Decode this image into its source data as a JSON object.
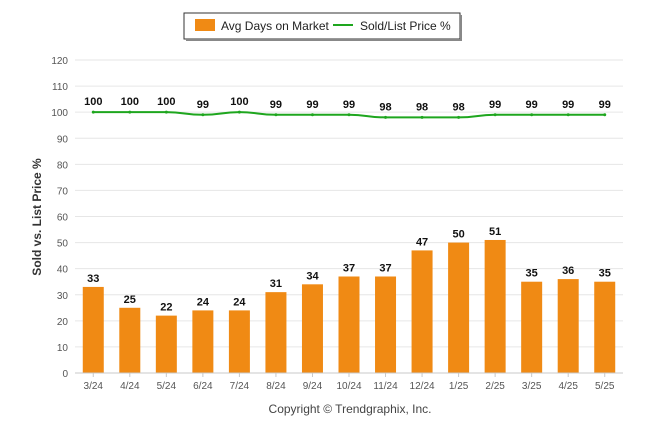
{
  "chart_data": {
    "type": "bar",
    "categories": [
      "3/24",
      "4/24",
      "5/24",
      "6/24",
      "7/24",
      "8/24",
      "9/24",
      "10/24",
      "11/24",
      "12/24",
      "1/25",
      "2/25",
      "3/25",
      "4/25",
      "5/25"
    ],
    "series": [
      {
        "name": "Avg Days on Market",
        "type": "bar",
        "color": "#f08a14",
        "values": [
          33,
          25,
          22,
          24,
          24,
          31,
          34,
          37,
          37,
          47,
          50,
          51,
          35,
          36,
          35
        ]
      },
      {
        "name": "Sold/List Price %",
        "type": "line",
        "color": "#1ea61e",
        "values": [
          100,
          100,
          100,
          99,
          100,
          99,
          99,
          99,
          98,
          98,
          98,
          99,
          99,
          99,
          99
        ]
      }
    ],
    "ylabel": "Sold vs. List Price %",
    "ylim": [
      0,
      120
    ],
    "yticks": [
      0,
      10,
      20,
      30,
      40,
      50,
      60,
      70,
      80,
      90,
      100,
      110,
      120
    ],
    "grid": true,
    "legend_position": "top-center"
  },
  "credit": "Copyright © Trendgraphix, Inc."
}
